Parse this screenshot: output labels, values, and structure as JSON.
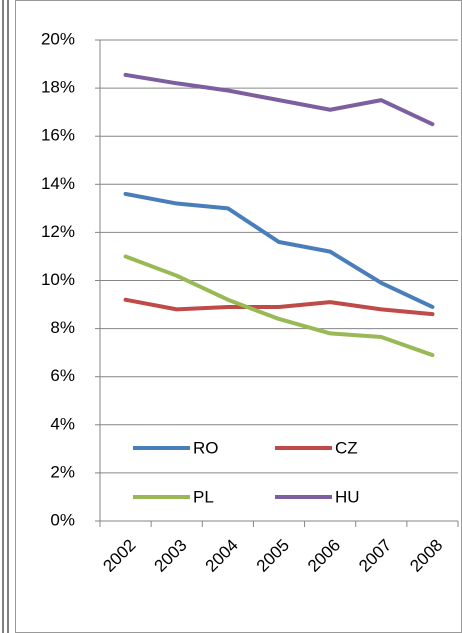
{
  "chart_data": {
    "type": "line",
    "categories": [
      "2002",
      "2003",
      "2004",
      "2005",
      "2006",
      "2007",
      "2008"
    ],
    "series": [
      {
        "name": "RO",
        "color": "#4a7ebb",
        "values": [
          13.6,
          13.2,
          13.0,
          11.6,
          11.2,
          9.9,
          8.9
        ]
      },
      {
        "name": "CZ",
        "color": "#be4b48",
        "values": [
          9.2,
          8.8,
          8.9,
          8.9,
          9.1,
          8.8,
          8.6
        ]
      },
      {
        "name": "PL",
        "color": "#98b954",
        "values": [
          11.0,
          10.2,
          9.2,
          8.4,
          7.8,
          7.65,
          6.9
        ]
      },
      {
        "name": "HU",
        "color": "#7d5fa0",
        "values": [
          18.55,
          18.2,
          17.9,
          17.5,
          17.1,
          17.5,
          16.5
        ]
      }
    ],
    "ylim": [
      0,
      20
    ],
    "yticks": [
      {
        "value": 0,
        "label": "0%"
      },
      {
        "value": 2,
        "label": "2%"
      },
      {
        "value": 4,
        "label": "4%"
      },
      {
        "value": 6,
        "label": "6%"
      },
      {
        "value": 8,
        "label": "8%"
      },
      {
        "value": 10,
        "label": "10%"
      },
      {
        "value": 12,
        "label": "12%"
      },
      {
        "value": 14,
        "label": "14%"
      },
      {
        "value": 16,
        "label": "16%"
      },
      {
        "value": 18,
        "label": "18%"
      },
      {
        "value": 20,
        "label": "20%"
      }
    ],
    "grid": true,
    "legend": "lower-left"
  }
}
